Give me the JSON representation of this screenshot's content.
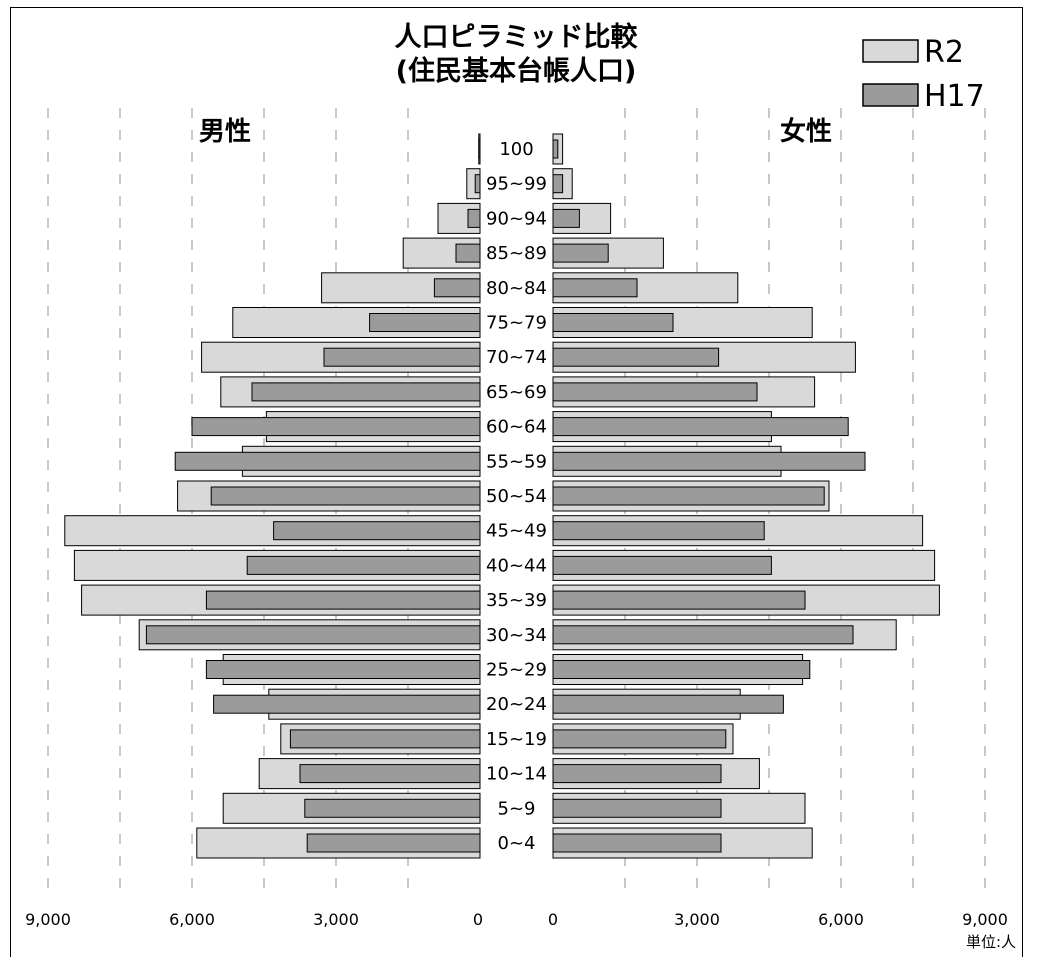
{
  "chart_data": {
    "type": "bar",
    "title_lines": [
      "人口ピラミッド比較",
      "(住民基本台帳人口)"
    ],
    "left_label": "男性",
    "right_label": "女性",
    "unit_label": "単位:人",
    "categories": [
      "100",
      "95~99",
      "90~94",
      "85~89",
      "80~84",
      "75~79",
      "70~74",
      "65~69",
      "60~64",
      "55~59",
      "50~54",
      "45~49",
      "40~44",
      "35~39",
      "30~34",
      "25~29",
      "20~24",
      "15~19",
      "10~14",
      "5~9",
      "0~4"
    ],
    "axis_ticks": [
      "9,000",
      "6,000",
      "3,000",
      "0"
    ],
    "xlim": [
      0,
      9000
    ],
    "grid": true,
    "legend_position": "top-right",
    "series": [
      {
        "name": "R2",
        "color": "#d9d9d9",
        "male": [
          50,
          550,
          1750,
          3200,
          6600,
          10300,
          11600,
          10800,
          8900,
          9900,
          12600,
          17300,
          16900,
          16600,
          14200,
          10700,
          8800,
          8300,
          9200,
          10700,
          11800
        ],
        "female": [
          200,
          400,
          1200,
          2300,
          3850,
          5400,
          6300,
          5450,
          4550,
          4750,
          5750,
          7700,
          7950,
          8050,
          7150,
          5200,
          3900,
          3750,
          4300,
          5250,
          5400
        ]
      },
      {
        "name": "H17",
        "color": "#9b9b9b",
        "male": [
          50,
          200,
          500,
          1000,
          1900,
          4600,
          6500,
          9500,
          12000,
          12700,
          11200,
          8600,
          9700,
          11400,
          13900,
          11400,
          11100,
          7900,
          7500,
          7300,
          7200
        ],
        "female": [
          100,
          200,
          550,
          1150,
          1750,
          2500,
          3450,
          4250,
          6150,
          6500,
          5650,
          4400,
          4550,
          5250,
          6250,
          5350,
          4800,
          3600,
          3500,
          3500,
          3500
        ]
      }
    ],
    "male_scale_note": "left side values shown at half scale relative to axis"
  }
}
